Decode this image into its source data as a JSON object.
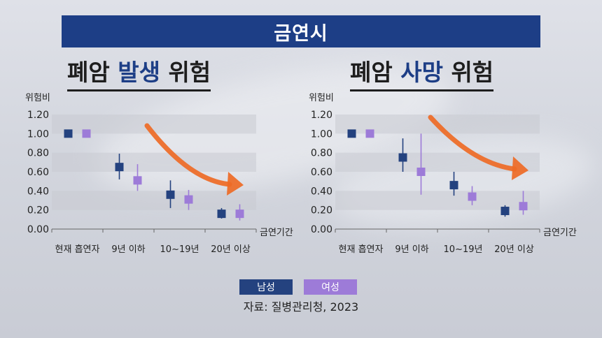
{
  "header": {
    "title": "금연시"
  },
  "panels": [
    {
      "title_pre": "폐암 ",
      "title_hl": "발생",
      "title_post": " 위험"
    },
    {
      "title_pre": "폐암 ",
      "title_hl": "사망",
      "title_post": " 위험"
    }
  ],
  "legend": {
    "male": "남성",
    "female": "여성"
  },
  "source": "자료: 질병관리청, 2023",
  "colors": {
    "male": "#24427f",
    "female": "#9d7bd8",
    "header": "#1d3e86",
    "arrow": "#ee6a25",
    "band": "#c9cbd1"
  },
  "chart_data": [
    {
      "type": "scatter",
      "title": "폐암 발생 위험",
      "ylabel": "위험비",
      "xlabel": "금연기간",
      "categories": [
        "현재 흡연자",
        "9년 이하",
        "10~19년",
        "20년 이상"
      ],
      "ylim": [
        0,
        1.2
      ],
      "yticks": [
        "0.00",
        "0.20",
        "0.40",
        "0.60",
        "0.80",
        "1.00",
        "1.20"
      ],
      "grid": "alternating bands",
      "series": [
        {
          "name": "남성",
          "values": [
            1.0,
            0.65,
            0.36,
            0.16
          ],
          "lower": [
            1.0,
            0.52,
            0.22,
            0.11
          ],
          "upper": [
            1.0,
            0.79,
            0.51,
            0.22
          ]
        },
        {
          "name": "여성",
          "values": [
            1.0,
            0.51,
            0.31,
            0.16
          ],
          "lower": [
            1.0,
            0.4,
            0.2,
            0.09
          ],
          "upper": [
            1.0,
            0.68,
            0.41,
            0.26
          ]
        }
      ]
    },
    {
      "type": "scatter",
      "title": "폐암 사망 위험",
      "ylabel": "위험비",
      "xlabel": "금연기간",
      "categories": [
        "현재 흡연자",
        "9년 이하",
        "10~19년",
        "20년 이상"
      ],
      "ylim": [
        0,
        1.2
      ],
      "yticks": [
        "0.00",
        "0.20",
        "0.40",
        "0.60",
        "0.80",
        "1.00",
        "1.20"
      ],
      "grid": "alternating bands",
      "series": [
        {
          "name": "남성",
          "values": [
            1.0,
            0.75,
            0.46,
            0.19
          ],
          "lower": [
            1.0,
            0.6,
            0.35,
            0.13
          ],
          "upper": [
            1.0,
            0.95,
            0.6,
            0.25
          ]
        },
        {
          "name": "여성",
          "values": [
            1.0,
            0.6,
            0.34,
            0.24
          ],
          "lower": [
            1.0,
            0.36,
            0.25,
            0.15
          ],
          "upper": [
            1.0,
            1.0,
            0.45,
            0.4
          ]
        }
      ]
    }
  ]
}
